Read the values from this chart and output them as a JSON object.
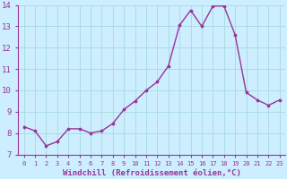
{
  "x": [
    0,
    1,
    2,
    3,
    4,
    5,
    6,
    7,
    8,
    9,
    10,
    11,
    12,
    13,
    14,
    15,
    16,
    17,
    18,
    19,
    20,
    21,
    22,
    23
  ],
  "y": [
    8.3,
    8.1,
    7.4,
    7.6,
    8.2,
    8.2,
    8.0,
    8.1,
    8.45,
    9.1,
    9.5,
    10.0,
    10.4,
    11.15,
    13.05,
    13.75,
    13.0,
    13.95,
    13.95,
    12.6,
    9.9,
    9.55,
    9.3,
    9.55
  ],
  "line_color": "#993399",
  "marker": "o",
  "markersize": 2.2,
  "linewidth": 1.0,
  "xlabel": "Windchill (Refroidissement éolien,°C)",
  "xlabel_fontsize": 6.5,
  "ylim": [
    7,
    14
  ],
  "xlim": [
    -0.5,
    23.5
  ],
  "yticks": [
    7,
    8,
    9,
    10,
    11,
    12,
    13,
    14
  ],
  "xticks": [
    0,
    1,
    2,
    3,
    4,
    5,
    6,
    7,
    8,
    9,
    10,
    11,
    12,
    13,
    14,
    15,
    16,
    17,
    18,
    19,
    20,
    21,
    22,
    23
  ],
  "xtick_fontsize": 5.0,
  "ytick_fontsize": 6.5,
  "bg_color": "#cceeff",
  "grid_color": "#aadddd",
  "tick_color": "#993399",
  "label_color": "#993399",
  "spine_color": "#993399"
}
